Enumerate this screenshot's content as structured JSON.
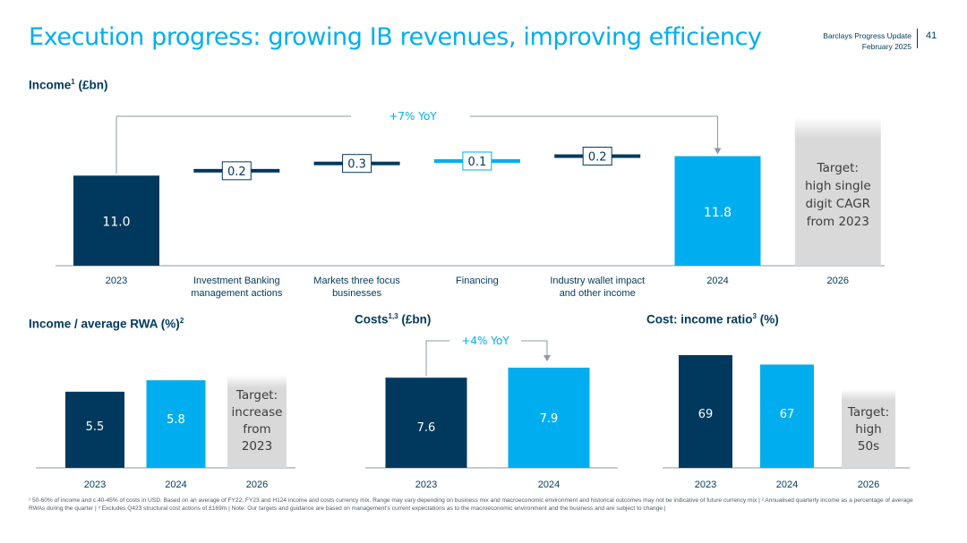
{
  "header": {
    "title": "Execution progress: growing IB revenues, improving efficiency",
    "deck_name": "Barclays Progress Update",
    "date": "February 2025",
    "page_number": "41"
  },
  "colors": {
    "dark_blue": "#00395d",
    "light_blue": "#00aeef",
    "grey": "#d9d9d9",
    "axis": "#8a9aa8"
  },
  "chart_data": [
    {
      "id": "income",
      "type": "bar",
      "subtype": "waterfall",
      "title": "Income",
      "title_sup": "1",
      "title_unit": "(£bn)",
      "categories": [
        "2023",
        "Investment Banking management actions",
        "Markets three focus businesses",
        "Financing",
        "Industry wallet impact and other income",
        "2024",
        "2026"
      ],
      "category_lines": [
        [
          "2023"
        ],
        [
          "Investment Banking",
          "management actions"
        ],
        [
          "Markets three focus",
          "businesses"
        ],
        [
          "Financing"
        ],
        [
          "Industry wallet impact",
          "and other income"
        ],
        [
          "2024"
        ],
        [
          "2026"
        ]
      ],
      "values": [
        11.0,
        0.2,
        0.3,
        0.1,
        0.2,
        11.8,
        null
      ],
      "labels": [
        "11.0",
        "0.2",
        "0.3",
        "0.1",
        "0.2",
        "11.8",
        ""
      ],
      "bar_kinds": [
        "total",
        "step",
        "step",
        "step",
        "step",
        "total",
        "target"
      ],
      "target_lines": [
        "Target:",
        "high single",
        "digit CAGR",
        "from 2023"
      ],
      "annotation": "+7% YoY"
    },
    {
      "id": "rwa",
      "type": "bar",
      "title": "Income / average RWA (%)",
      "title_sup": "2",
      "categories": [
        "2023",
        "2024",
        "2026"
      ],
      "values": [
        5.5,
        5.8,
        null
      ],
      "labels": [
        "5.5",
        "5.8",
        ""
      ],
      "bar_kinds": [
        "dark",
        "light",
        "target"
      ],
      "target_lines": [
        "Target:",
        "increase",
        "from",
        "2023"
      ]
    },
    {
      "id": "costs",
      "type": "bar",
      "title": "Costs",
      "title_sup": "1,3",
      "title_unit": "(£bn)",
      "categories": [
        "2023",
        "2024"
      ],
      "values": [
        7.6,
        7.9
      ],
      "labels": [
        "7.6",
        "7.9"
      ],
      "bar_kinds": [
        "dark",
        "light"
      ],
      "annotation": "+4% YoY"
    },
    {
      "id": "cir",
      "type": "bar",
      "title": "Cost: income ratio",
      "title_sup": "3",
      "title_unit": "(%)",
      "categories": [
        "2023",
        "2024",
        "2026"
      ],
      "values": [
        69,
        67,
        null
      ],
      "labels": [
        "69",
        "67",
        ""
      ],
      "bar_kinds": [
        "dark",
        "light",
        "target"
      ],
      "target_lines": [
        "Target:",
        "high",
        "50s"
      ]
    }
  ],
  "footnote": "¹ 50-60% of income and c.40-45% of costs in USD. Based on an average of FY22, FY23 and H124 income and costs currency mix. Range may vary depending on business mix and macroeconomic environment and historical outcomes may not be indicative of future currency mix | ² Annualised quarterly income as a percentage of average RWAs during the quarter | ³ Excludes Q423 structural cost actions of £169m | Note: Our targets and guidance are based on management's current expectations as to the macroeconomic environment and the business and are subject to change |"
}
